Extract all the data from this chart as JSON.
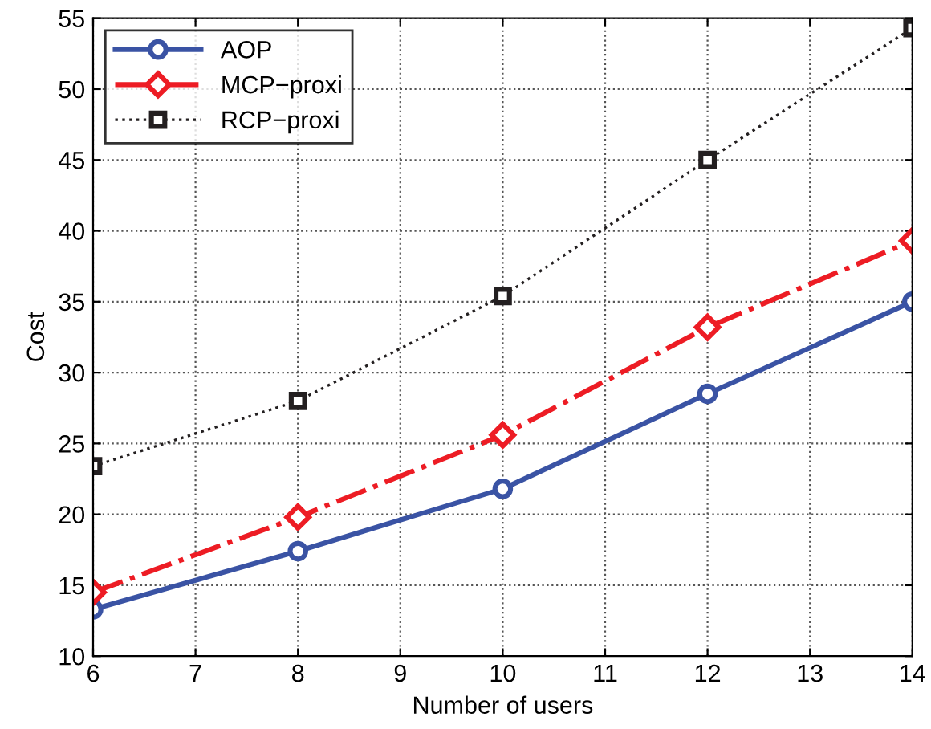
{
  "chart_data": {
    "type": "line",
    "xlabel": "Number of users",
    "ylabel": "Cost",
    "x": [
      6,
      8,
      10,
      12,
      14
    ],
    "series": [
      {
        "name": "AOP",
        "color": "#3a53a4",
        "values": [
          13.3,
          17.4,
          21.8,
          28.5,
          35.0
        ],
        "marker": "circle",
        "line_style": "solid"
      },
      {
        "name": "MCP−proxi",
        "color": "#ed1c24",
        "values": [
          14.5,
          19.8,
          25.6,
          33.2,
          39.3
        ],
        "marker": "diamond",
        "line_style": "dashdot"
      },
      {
        "name": "RCP−proxi",
        "color": "#231f20",
        "values": [
          23.4,
          28.0,
          35.4,
          45.0,
          54.3
        ],
        "marker": "square",
        "line_style": "dotted"
      }
    ],
    "xlim": [
      6,
      14
    ],
    "xticks": [
      6,
      7,
      8,
      9,
      10,
      11,
      12,
      13,
      14
    ],
    "ylim": [
      10,
      55
    ],
    "yticks": [
      10,
      15,
      20,
      25,
      30,
      35,
      40,
      45,
      50,
      55
    ],
    "grid": true,
    "legend": "top left"
  }
}
